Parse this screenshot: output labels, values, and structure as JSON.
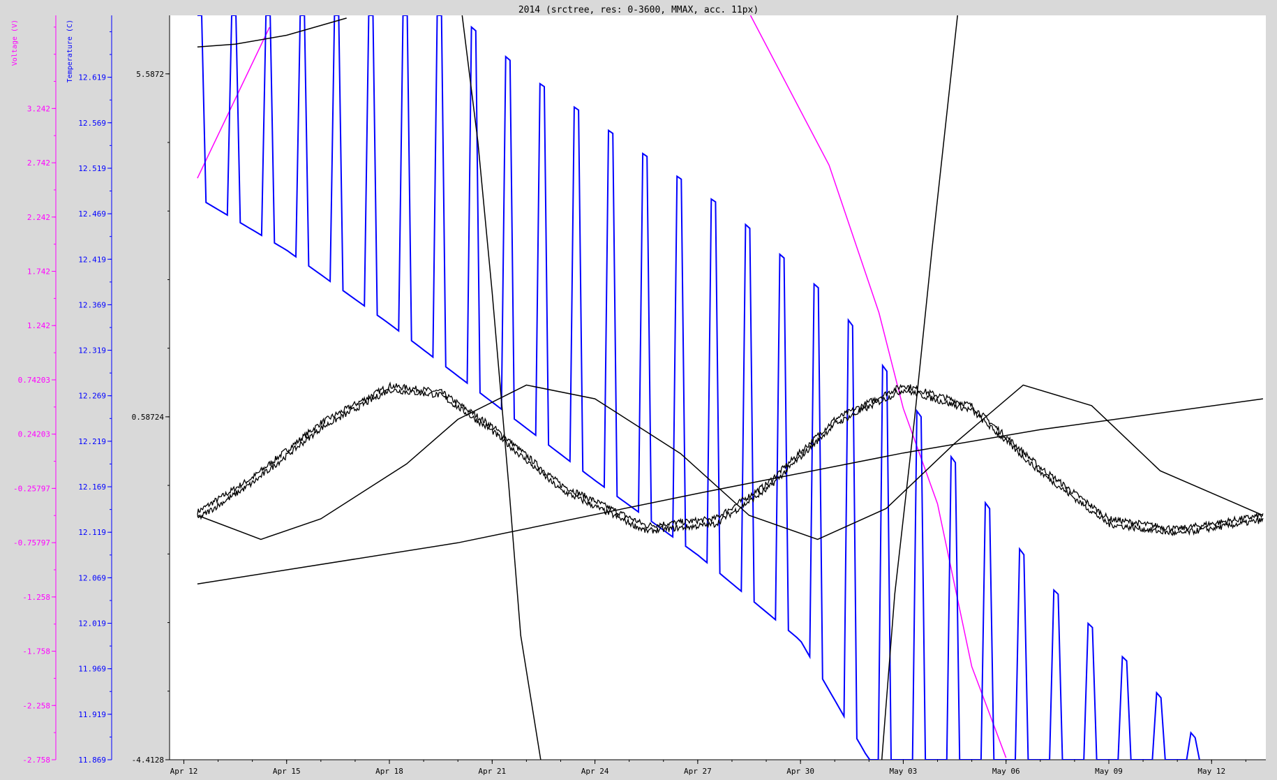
{
  "chart_data": {
    "type": "line",
    "title": "2014 (srctree, res: 0-3600, MMAX, acc. 11px)",
    "colors": {
      "background": "#d9d9d9",
      "plot_background": "#ffffff",
      "voltage": "#ff00ff",
      "temperature": "#0000ff",
      "misc": "#000000"
    },
    "x_axis": {
      "type": "date",
      "range": [
        "2014-04-11T14:00",
        "2014-05-13T14:00"
      ],
      "ticks": [
        {
          "label": "Apr 12",
          "date": "2014-04-12"
        },
        {
          "label": "Apr 15",
          "date": "2014-04-15"
        },
        {
          "label": "Apr 18",
          "date": "2014-04-18"
        },
        {
          "label": "Apr 21",
          "date": "2014-04-21"
        },
        {
          "label": "Apr 24",
          "date": "2014-04-24"
        },
        {
          "label": "Apr 27",
          "date": "2014-04-27"
        },
        {
          "label": "Apr 30",
          "date": "2014-04-30"
        },
        {
          "label": "May 03",
          "date": "2014-05-03"
        },
        {
          "label": "May 06",
          "date": "2014-05-06"
        },
        {
          "label": "May 09",
          "date": "2014-05-09"
        },
        {
          "label": "May 12",
          "date": "2014-05-12"
        }
      ]
    },
    "y_axes": [
      {
        "id": "voltage",
        "label": "Voltage (V)",
        "color": "#ff00ff",
        "range": [
          -2.758,
          4.1
        ],
        "tick_labels": [
          "3.242",
          "2.742",
          "2.242",
          "1.742",
          "1.242",
          "0.74203",
          "0.24203",
          "-0.25797",
          "-0.75797",
          "-1.258",
          "-1.758",
          "-2.258",
          "-2.758"
        ],
        "tick_values": [
          3.242,
          2.742,
          2.242,
          1.742,
          1.242,
          0.74203,
          0.24203,
          -0.25797,
          -0.75797,
          -1.258,
          -1.758,
          -2.258,
          -2.758
        ]
      },
      {
        "id": "temperature",
        "label": "Temperature (C)",
        "color": "#0000ff",
        "range": [
          11.869,
          12.687
        ],
        "tick_labels": [
          "12.619",
          "12.569",
          "12.519",
          "12.469",
          "12.419",
          "12.369",
          "12.319",
          "12.269",
          "12.219",
          "12.169",
          "12.119",
          "12.069",
          "12.019",
          "11.969",
          "11.919",
          "11.869"
        ],
        "tick_values": [
          12.619,
          12.569,
          12.519,
          12.469,
          12.419,
          12.369,
          12.319,
          12.269,
          12.219,
          12.169,
          12.119,
          12.069,
          12.019,
          11.969,
          11.919,
          11.869
        ]
      },
      {
        "id": "misc",
        "label": "",
        "color": "#000000",
        "range": [
          -4.4128,
          6.44
        ],
        "tick_labels": [
          "5.5872",
          "0.58724",
          "-4.4128"
        ],
        "tick_values": [
          5.5872,
          0.58724,
          -4.4128
        ]
      }
    ],
    "series": [
      {
        "axis": "voltage",
        "color": "#ff00ff",
        "style": "line",
        "points": [
          [
            "2014-04-12T09:30",
            2.6
          ],
          [
            "2014-04-14T12:00",
            3.99
          ]
        ]
      },
      {
        "axis": "voltage",
        "color": "#ff00ff",
        "style": "line",
        "points": [
          [
            "2014-04-28T13:00",
            4.1
          ],
          [
            "2014-04-30T20:00",
            2.72
          ],
          [
            "2014-05-02T07:00",
            1.36
          ],
          [
            "2014-05-03T00:00",
            0.48
          ],
          [
            "2014-05-04T00:00",
            -0.4
          ],
          [
            "2014-05-05T00:00",
            -1.9
          ],
          [
            "2014-05-06T00:00",
            -2.74
          ]
        ]
      },
      {
        "axis": "temperature",
        "color": "#0000ff",
        "style": "daily-oscillation",
        "start": "2014-04-12T09:30",
        "end": "2014-05-11T17:00",
        "high_points": [
          [
            "2014-04-12T09:30",
            12.687
          ],
          [
            "2014-04-16T06:00",
            12.687
          ],
          [
            "2014-04-20T00:00",
            12.687
          ],
          [
            "2014-04-22T00:00",
            12.622
          ],
          [
            "2014-04-25T00:00",
            12.545
          ],
          [
            "2014-04-28T00:00",
            12.47
          ],
          [
            "2014-05-01T00:00",
            12.372
          ],
          [
            "2014-05-04T00:00",
            12.222
          ],
          [
            "2014-05-07T00:00",
            12.07
          ],
          [
            "2014-05-10T00:00",
            11.96
          ],
          [
            "2014-05-11T17:00",
            11.885
          ]
        ],
        "low_points": [
          [
            "2014-04-12T09:30",
            12.487
          ],
          [
            "2014-04-15T00:00",
            12.429
          ],
          [
            "2014-04-18T00:00",
            12.348
          ],
          [
            "2014-04-21T00:00",
            12.262
          ],
          [
            "2014-04-24T00:00",
            12.176
          ],
          [
            "2014-04-27T00:00",
            12.094
          ],
          [
            "2014-04-30T00:00",
            12.0
          ],
          [
            "2014-05-02T00:00",
            11.869
          ],
          [
            "2014-05-11T17:00",
            11.869
          ]
        ]
      },
      {
        "axis": "misc",
        "color": "#000000",
        "style": "line",
        "points": [
          [
            "2014-04-12T09:30",
            5.98
          ],
          [
            "2014-04-13T12:00",
            6.02
          ],
          [
            "2014-04-15T00:00",
            6.15
          ],
          [
            "2014-04-16T18:00",
            6.4
          ]
        ]
      },
      {
        "axis": "misc",
        "color": "#000000",
        "style": "line",
        "points": [
          [
            "2014-04-20T03:00",
            6.44
          ],
          [
            "2014-04-20T14:00",
            4.6
          ],
          [
            "2014-04-21T00:00",
            2.4
          ],
          [
            "2014-04-21T12:00",
            -0.5
          ],
          [
            "2014-04-21T20:00",
            -2.6
          ],
          [
            "2014-04-22T10:00",
            -4.41
          ]
        ]
      },
      {
        "axis": "misc",
        "color": "#000000",
        "style": "line",
        "points": [
          [
            "2014-05-02T09:00",
            -4.41
          ],
          [
            "2014-05-02T18:00",
            -2.0
          ],
          [
            "2014-05-03T08:00",
            0.58
          ],
          [
            "2014-05-03T20:00",
            3.0
          ],
          [
            "2014-05-04T14:00",
            6.44
          ]
        ]
      },
      {
        "axis": "misc",
        "color": "#000000",
        "style": "line",
        "points": [
          [
            "2014-04-12T09:30",
            -1.85
          ],
          [
            "2014-04-20T00:00",
            -1.25
          ],
          [
            "2014-04-27T00:00",
            -0.53
          ],
          [
            "2014-05-03T00:00",
            0.06
          ],
          [
            "2014-05-07T00:00",
            0.4
          ],
          [
            "2014-05-13T12:00",
            0.85
          ]
        ]
      },
      {
        "axis": "misc",
        "color": "#000000",
        "style": "line",
        "points": [
          [
            "2014-04-12T09:30",
            -0.85
          ],
          [
            "2014-04-14T06:00",
            -1.2
          ],
          [
            "2014-04-16T00:00",
            -0.9
          ],
          [
            "2014-04-18T12:00",
            -0.1
          ],
          [
            "2014-04-20T00:00",
            0.55
          ],
          [
            "2014-04-22T00:00",
            1.05
          ],
          [
            "2014-04-24T00:00",
            0.85
          ],
          [
            "2014-04-26T12:00",
            0.05
          ],
          [
            "2014-04-28T12:00",
            -0.85
          ],
          [
            "2014-04-30T12:00",
            -1.2
          ],
          [
            "2014-05-02T12:00",
            -0.75
          ],
          [
            "2014-05-04T12:00",
            0.2
          ],
          [
            "2014-05-06T12:00",
            1.05
          ],
          [
            "2014-05-08T12:00",
            0.75
          ],
          [
            "2014-05-10T12:00",
            -0.2
          ],
          [
            "2014-05-13T12:00",
            -0.85
          ]
        ]
      },
      {
        "axis": "misc",
        "color": "#000000",
        "style": "noisy-line",
        "points": [
          [
            "2014-04-12T09:30",
            -0.8
          ],
          [
            "2014-04-14T00:00",
            -0.3
          ],
          [
            "2014-04-16T00:00",
            0.5
          ],
          [
            "2014-04-18T00:00",
            1.04
          ],
          [
            "2014-04-19T12:00",
            0.95
          ],
          [
            "2014-04-21T00:00",
            0.45
          ],
          [
            "2014-04-23T00:00",
            -0.4
          ],
          [
            "2014-04-25T12:00",
            -1.0
          ],
          [
            "2014-04-27T12:00",
            -0.9
          ],
          [
            "2014-04-29T00:00",
            -0.4
          ],
          [
            "2014-05-01T00:00",
            0.55
          ],
          [
            "2014-05-03T00:00",
            1.05
          ],
          [
            "2014-05-05T00:00",
            0.75
          ],
          [
            "2014-05-07T00:00",
            -0.15
          ],
          [
            "2014-05-09T00:00",
            -0.9
          ],
          [
            "2014-05-11T00:00",
            -1.05
          ],
          [
            "2014-05-13T12:00",
            -0.85
          ]
        ]
      },
      {
        "axis": "misc",
        "color": "#000000",
        "style": "noisy-line",
        "points": [
          [
            "2014-04-12T09:30",
            -0.9
          ],
          [
            "2014-04-14T00:00",
            -0.38
          ],
          [
            "2014-04-16T00:00",
            0.42
          ],
          [
            "2014-04-18T00:00",
            0.98
          ],
          [
            "2014-04-19T12:00",
            0.9
          ],
          [
            "2014-04-21T00:00",
            0.38
          ],
          [
            "2014-04-23T00:00",
            -0.48
          ],
          [
            "2014-04-25T12:00",
            -1.08
          ],
          [
            "2014-04-27T12:00",
            -0.98
          ],
          [
            "2014-04-29T00:00",
            -0.48
          ],
          [
            "2014-05-01T00:00",
            0.48
          ],
          [
            "2014-05-03T00:00",
            0.98
          ],
          [
            "2014-05-05T00:00",
            0.68
          ],
          [
            "2014-05-07T00:00",
            -0.22
          ],
          [
            "2014-05-09T00:00",
            -0.98
          ],
          [
            "2014-05-11T00:00",
            -1.12
          ],
          [
            "2014-05-13T12:00",
            -0.92
          ]
        ]
      }
    ]
  }
}
